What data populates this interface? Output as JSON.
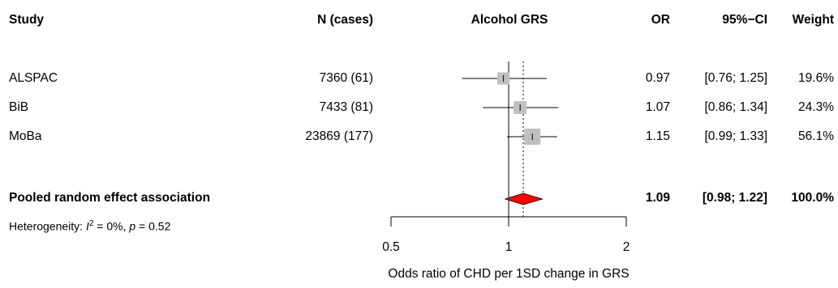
{
  "header": {
    "study": "Study",
    "n": "N (cases)",
    "exposure": "Alcohol GRS",
    "or": "OR",
    "ci": "95%−CI",
    "weight": "Weight"
  },
  "studies": [
    {
      "name": "ALSPAC",
      "n": "7360 (61)",
      "or_text": "0.97",
      "ci_text": "[0.76; 1.25]",
      "weight_text": "19.6%"
    },
    {
      "name": "BiB",
      "n": "7433 (81)",
      "or_text": "1.07",
      "ci_text": "[0.86; 1.34]",
      "weight_text": "24.3%"
    },
    {
      "name": "MoBa",
      "n": "23869 (177)",
      "or_text": "1.15",
      "ci_text": "[0.99; 1.33]",
      "weight_text": "56.1%"
    }
  ],
  "pooled": {
    "label": "Pooled random effect association",
    "or_text": "1.09",
    "ci_text": "[0.98; 1.22]",
    "weight_text": "100.0%"
  },
  "heterogeneity": {
    "prefix": "Heterogeneity: ",
    "i_symbol": "I",
    "sup": "2",
    "mid": " = 0%, ",
    "p_symbol": "p",
    "suffix": " = 0.52"
  },
  "colors": {
    "pooled_fill": "#ff0000",
    "box_fill": "#c0c0c0"
  },
  "chart_data": {
    "type": "forest",
    "xlabel": "Odds ratio of CHD per 1SD change in GRS",
    "x_scale": "log",
    "x_ticks": [
      0.5,
      1,
      2
    ],
    "x_tick_labels": [
      "0.5",
      "1",
      "2"
    ],
    "xlim": [
      0.5,
      2
    ],
    "null_line": 1,
    "pooled_line": 1.09,
    "series": [
      {
        "study": "ALSPAC",
        "or": 0.97,
        "lower": 0.76,
        "upper": 1.25,
        "weight": 19.6
      },
      {
        "study": "BiB",
        "or": 1.07,
        "lower": 0.86,
        "upper": 1.34,
        "weight": 24.3
      },
      {
        "study": "MoBa",
        "or": 1.15,
        "lower": 0.99,
        "upper": 1.33,
        "weight": 56.1
      }
    ],
    "pooled": {
      "or": 1.09,
      "lower": 0.98,
      "upper": 1.22,
      "weight": 100.0
    }
  }
}
